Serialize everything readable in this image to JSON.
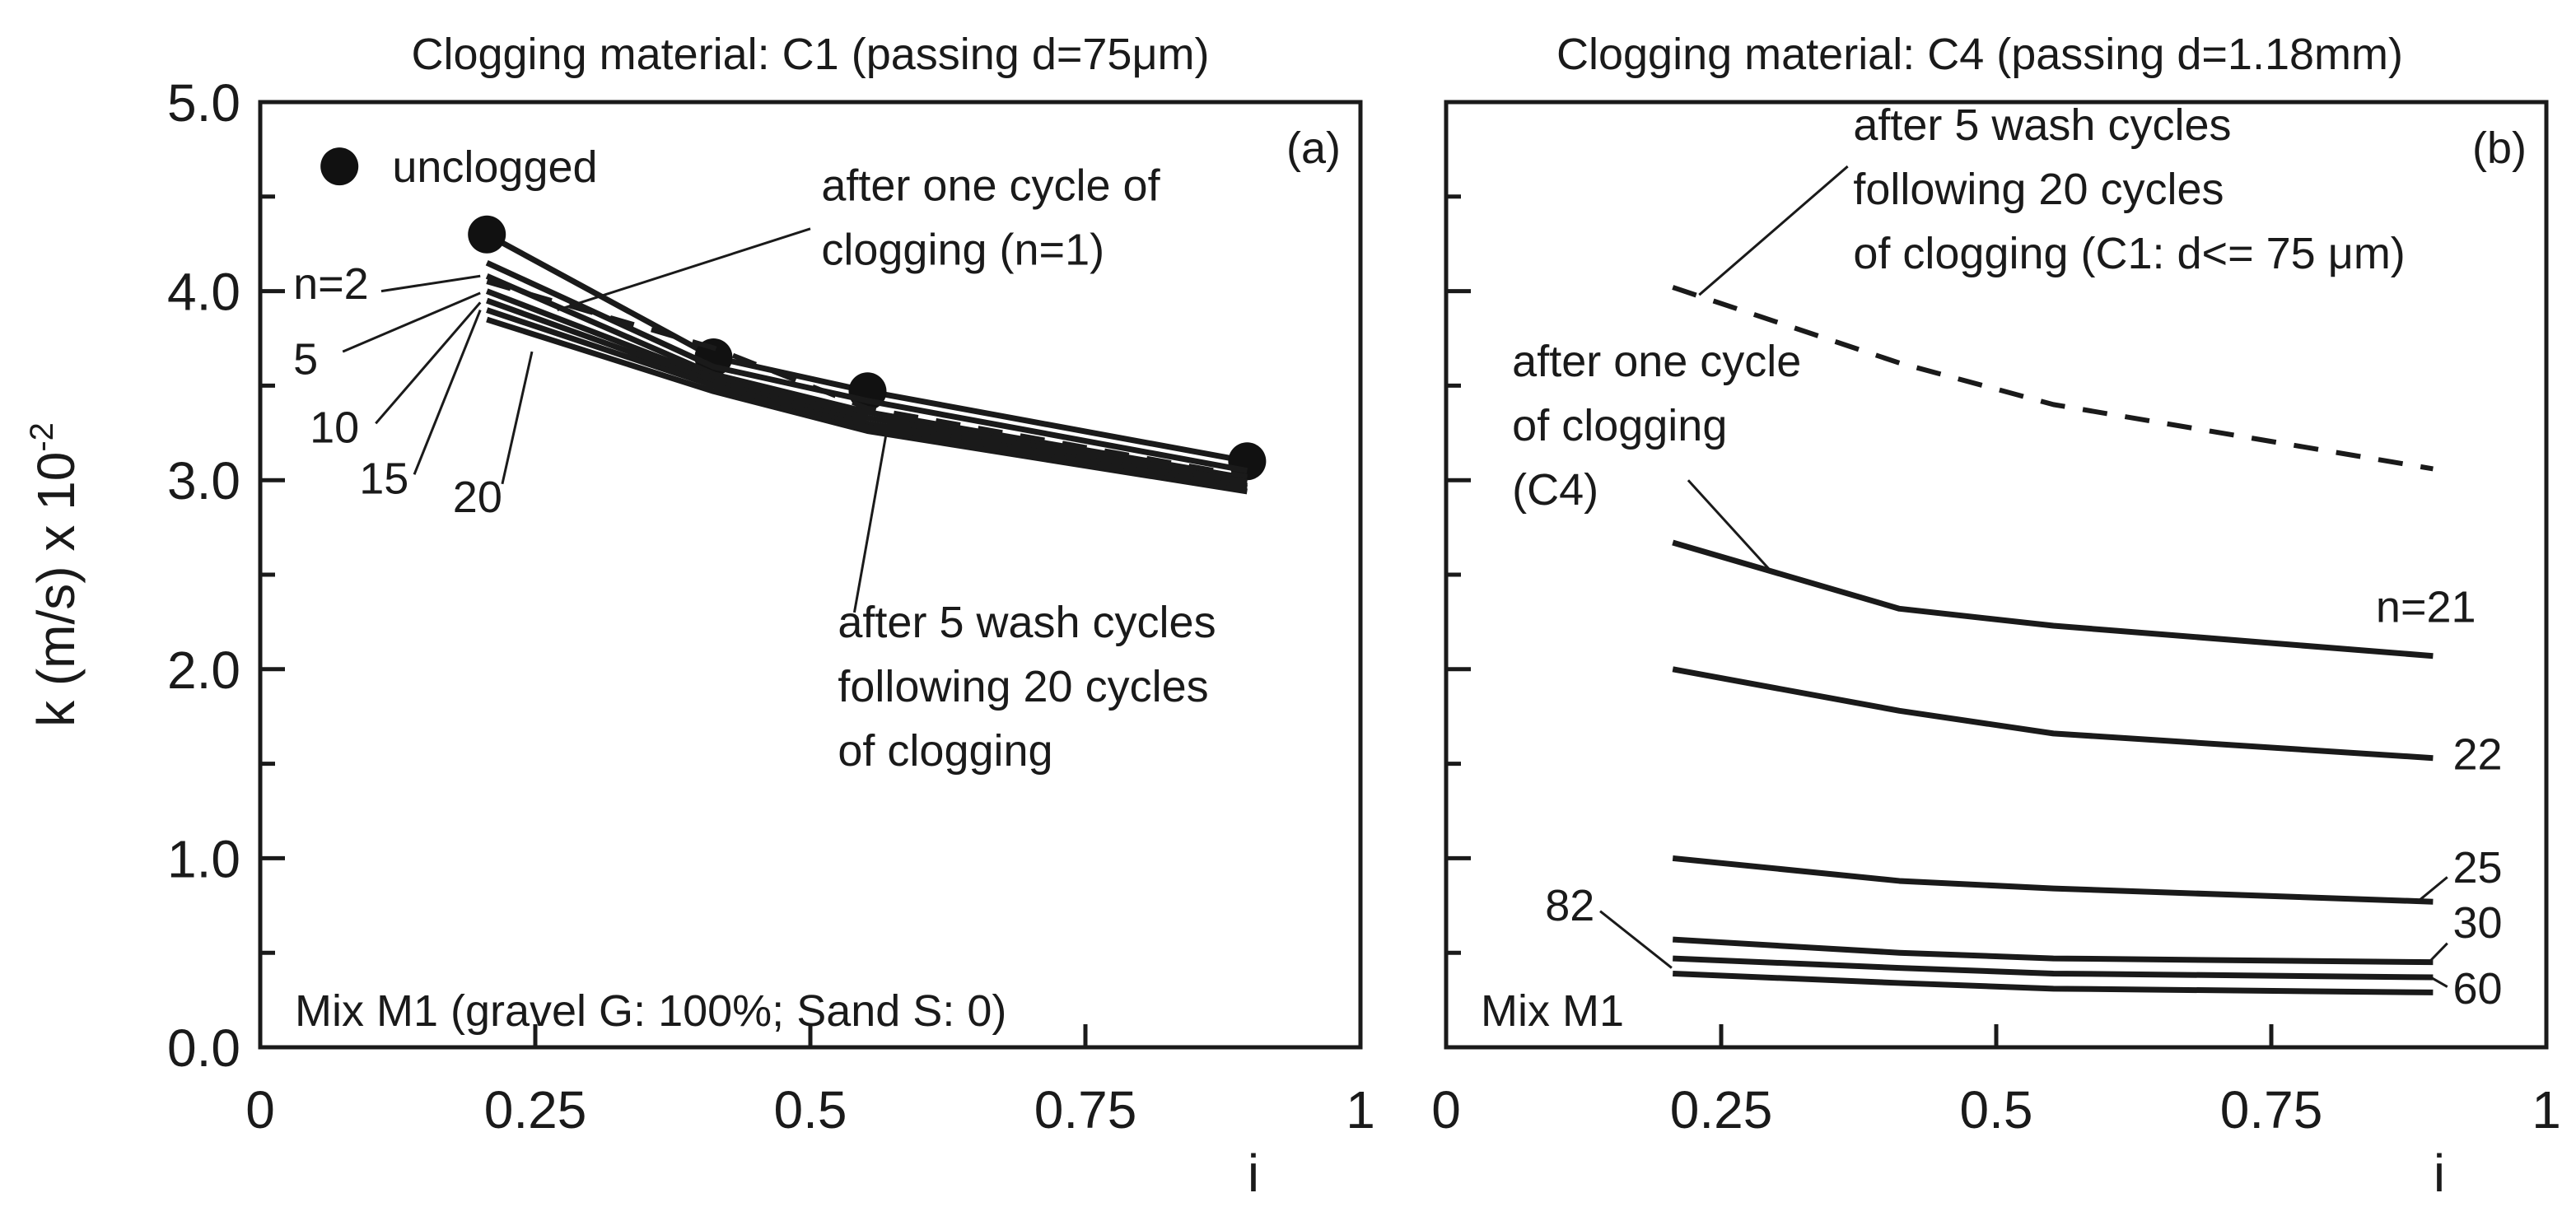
{
  "chart_data": [
    {
      "type": "line",
      "panel": "(a)",
      "title": "Clogging material: C1 (passing d=75μm)",
      "xlabel": "i",
      "ylabel": "k (m/s) x 10",
      "ylabel_exp": "-2",
      "xlim": [
        0,
        1
      ],
      "ylim": [
        0,
        5
      ],
      "x_ticks": [
        "0",
        "0.25",
        "0.5",
        "0.75",
        "1"
      ],
      "y_ticks": [
        "0.0",
        "1.0",
        "2.0",
        "3.0",
        "4.0",
        "5.0"
      ],
      "mix_label": "Mix M1 (gravel G: 100%; Sand S: 0)",
      "legend": {
        "unclogged": "unclogged",
        "placement": "top-left"
      },
      "series": [
        {
          "name": "unclogged",
          "style": "marker",
          "x": [
            0.206,
            0.412,
            0.552,
            0.897
          ],
          "y": [
            4.3,
            3.65,
            3.47,
            3.1
          ]
        },
        {
          "name": "n=1",
          "style": "solid",
          "x": [
            0.206,
            0.412,
            0.552,
            0.897
          ],
          "y": [
            4.15,
            3.6,
            3.42,
            3.05
          ]
        },
        {
          "name": "n=2",
          "style": "solid",
          "x": [
            0.206,
            0.412,
            0.552,
            0.897
          ],
          "y": [
            4.08,
            3.56,
            3.36,
            3.01
          ]
        },
        {
          "name": "n=5",
          "style": "solid",
          "x": [
            0.206,
            0.412,
            0.552,
            0.897
          ],
          "y": [
            4.0,
            3.54,
            3.33,
            2.99
          ]
        },
        {
          "name": "n=10",
          "style": "solid",
          "x": [
            0.206,
            0.412,
            0.552,
            0.897
          ],
          "y": [
            3.95,
            3.52,
            3.3,
            2.97
          ]
        },
        {
          "name": "n=15",
          "style": "solid",
          "x": [
            0.206,
            0.412,
            0.552,
            0.897
          ],
          "y": [
            3.9,
            3.5,
            3.28,
            2.96
          ]
        },
        {
          "name": "n=20",
          "style": "solid",
          "x": [
            0.206,
            0.412,
            0.552,
            0.897
          ],
          "y": [
            3.85,
            3.47,
            3.26,
            2.94
          ]
        },
        {
          "name": "after 5 wash cycles",
          "style": "dashed",
          "x": [
            0.206,
            0.412,
            0.552,
            0.897
          ],
          "y": [
            4.05,
            3.7,
            3.38,
            3.02
          ]
        }
      ],
      "annotations": [
        {
          "text": "after one cycle of",
          "x": 0.51,
          "y": 4.48
        },
        {
          "text": "clogging (n=1)",
          "x": 0.51,
          "y": 4.14
        },
        {
          "text": "n=2",
          "x": 0.03,
          "y": 3.96
        },
        {
          "text": "5",
          "x": 0.03,
          "y": 3.56
        },
        {
          "text": "10",
          "x": 0.045,
          "y": 3.2
        },
        {
          "text": "15",
          "x": 0.09,
          "y": 2.93
        },
        {
          "text": "20",
          "x": 0.175,
          "y": 2.83
        },
        {
          "text": "after 5 wash cycles",
          "x": 0.525,
          "y": 2.17
        },
        {
          "text": "following 20 cycles",
          "x": 0.525,
          "y": 1.83
        },
        {
          "text": "of clogging",
          "x": 0.525,
          "y": 1.49
        }
      ]
    },
    {
      "type": "line",
      "panel": "(b)",
      "title": "Clogging material: C4 (passing d=1.18mm)",
      "xlabel": "i",
      "xlim": [
        0,
        1
      ],
      "ylim": [
        0,
        5
      ],
      "x_ticks": [
        "0",
        "0.25",
        "0.5",
        "0.75",
        "1"
      ],
      "mix_label": "Mix M1",
      "series": [
        {
          "name": "after 5 wash cycles following 20 cycles of clogging (C1: d<= 75 μm)",
          "style": "dashed",
          "x": [
            0.206,
            0.412,
            0.552,
            0.897
          ],
          "y": [
            4.02,
            3.62,
            3.4,
            3.06
          ]
        },
        {
          "name": "n=21",
          "style": "solid",
          "x": [
            0.206,
            0.412,
            0.552,
            0.897
          ],
          "y": [
            2.67,
            2.32,
            2.23,
            2.07
          ]
        },
        {
          "name": "22",
          "style": "solid",
          "x": [
            0.206,
            0.412,
            0.552,
            0.897
          ],
          "y": [
            2.0,
            1.78,
            1.66,
            1.53
          ]
        },
        {
          "name": "25",
          "style": "solid",
          "x": [
            0.206,
            0.412,
            0.552,
            0.897
          ],
          "y": [
            1.0,
            0.88,
            0.84,
            0.77
          ]
        },
        {
          "name": "30",
          "style": "solid",
          "x": [
            0.206,
            0.412,
            0.552,
            0.897
          ],
          "y": [
            0.57,
            0.5,
            0.47,
            0.45
          ]
        },
        {
          "name": "60",
          "style": "solid",
          "x": [
            0.206,
            0.412,
            0.552,
            0.897
          ],
          "y": [
            0.47,
            0.42,
            0.39,
            0.37
          ]
        },
        {
          "name": "82",
          "style": "solid",
          "x": [
            0.206,
            0.412,
            0.552,
            0.897
          ],
          "y": [
            0.39,
            0.34,
            0.31,
            0.29
          ]
        }
      ],
      "annotations": [
        {
          "text": "after 5 wash cycles",
          "x": 0.37,
          "y": 4.8
        },
        {
          "text": "following 20 cycles",
          "x": 0.37,
          "y": 4.46
        },
        {
          "text": "of clogging (C1: d<= 75 μm)",
          "x": 0.37,
          "y": 4.12
        },
        {
          "text": "after one cycle",
          "x": 0.06,
          "y": 3.55
        },
        {
          "text": "of clogging",
          "x": 0.06,
          "y": 3.21
        },
        {
          "text": "(C4)",
          "x": 0.06,
          "y": 2.87
        },
        {
          "text": "n=21",
          "x": 0.845,
          "y": 2.25
        },
        {
          "text": "22",
          "x": 0.915,
          "y": 1.47
        },
        {
          "text": "25",
          "x": 0.915,
          "y": 0.87
        },
        {
          "text": "30",
          "x": 0.915,
          "y": 0.58
        },
        {
          "text": "60",
          "x": 0.915,
          "y": 0.23
        },
        {
          "text": "82",
          "x": 0.09,
          "y": 0.67
        }
      ]
    }
  ]
}
